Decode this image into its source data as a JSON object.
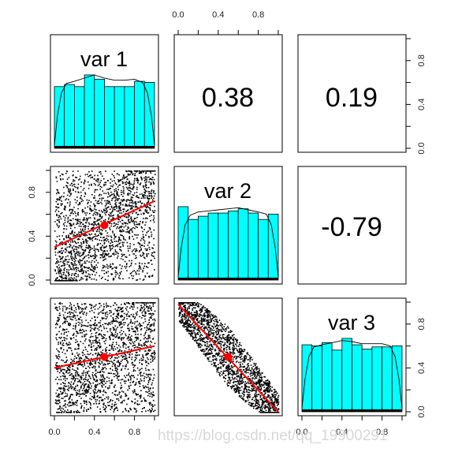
{
  "chart_data": {
    "type": "scatter",
    "title": "",
    "variables": [
      "var 1",
      "var 2",
      "var 3"
    ],
    "correlations": [
      {
        "row": 1,
        "col": 2,
        "pair": "var 1 / var 2",
        "value": 0.38,
        "label": "0.38"
      },
      {
        "row": 1,
        "col": 3,
        "pair": "var 1 / var 3",
        "value": 0.19,
        "label": "0.19"
      },
      {
        "row": 2,
        "col": 3,
        "pair": "var 2 / var 3",
        "value": -0.79,
        "label": "-0.79"
      }
    ],
    "axis_range": [
      0,
      1
    ],
    "axis_ticks": [
      0.0,
      0.4,
      0.8
    ],
    "axis_tick_labels": [
      "0.0",
      "0.4",
      "0.8"
    ],
    "histograms": [
      {
        "name": "var 1",
        "bins": [
          0,
          0.1,
          0.2,
          0.3,
          0.4,
          0.5,
          0.6,
          0.7,
          0.8,
          0.9,
          1.0
        ],
        "heights": [
          0.58,
          0.6,
          0.58,
          0.69,
          0.65,
          0.58,
          0.58,
          0.58,
          0.63,
          0.62
        ],
        "density_curve": [
          [
            0.0,
            0.03
          ],
          [
            0.03,
            0.3
          ],
          [
            0.07,
            0.52
          ],
          [
            0.12,
            0.61
          ],
          [
            0.2,
            0.63
          ],
          [
            0.3,
            0.66
          ],
          [
            0.4,
            0.69
          ],
          [
            0.5,
            0.66
          ],
          [
            0.6,
            0.64
          ],
          [
            0.7,
            0.64
          ],
          [
            0.8,
            0.65
          ],
          [
            0.88,
            0.62
          ],
          [
            0.93,
            0.52
          ],
          [
            0.97,
            0.3
          ],
          [
            1.0,
            0.03
          ]
        ]
      },
      {
        "name": "var 2",
        "bins": [
          0,
          0.1,
          0.2,
          0.3,
          0.4,
          0.5,
          0.6,
          0.7,
          0.8,
          0.9,
          1.0
        ],
        "heights": [
          0.69,
          0.57,
          0.6,
          0.63,
          0.63,
          0.65,
          0.67,
          0.63,
          0.57,
          0.62
        ],
        "density_curve": [
          [
            0.0,
            0.03
          ],
          [
            0.03,
            0.3
          ],
          [
            0.07,
            0.52
          ],
          [
            0.12,
            0.61
          ],
          [
            0.2,
            0.64
          ],
          [
            0.3,
            0.65
          ],
          [
            0.4,
            0.66
          ],
          [
            0.5,
            0.67
          ],
          [
            0.6,
            0.68
          ],
          [
            0.7,
            0.66
          ],
          [
            0.8,
            0.64
          ],
          [
            0.88,
            0.62
          ],
          [
            0.93,
            0.52
          ],
          [
            0.97,
            0.3
          ],
          [
            1.0,
            0.03
          ]
        ]
      },
      {
        "name": "var 3",
        "bins": [
          0,
          0.1,
          0.2,
          0.3,
          0.4,
          0.5,
          0.6,
          0.7,
          0.8,
          0.9,
          1.0
        ],
        "heights": [
          0.63,
          0.62,
          0.65,
          0.58,
          0.69,
          0.63,
          0.59,
          0.61,
          0.61,
          0.62
        ],
        "density_curve": [
          [
            0.0,
            0.03
          ],
          [
            0.03,
            0.3
          ],
          [
            0.07,
            0.52
          ],
          [
            0.12,
            0.61
          ],
          [
            0.2,
            0.63
          ],
          [
            0.3,
            0.65
          ],
          [
            0.4,
            0.67
          ],
          [
            0.5,
            0.66
          ],
          [
            0.6,
            0.64
          ],
          [
            0.7,
            0.64
          ],
          [
            0.8,
            0.64
          ],
          [
            0.88,
            0.62
          ],
          [
            0.93,
            0.52
          ],
          [
            0.97,
            0.3
          ],
          [
            1.0,
            0.03
          ]
        ]
      }
    ],
    "scatter_panels": [
      {
        "row": 2,
        "col": 1,
        "x": "var 1",
        "y": "var 2",
        "centroid": [
          0.5,
          0.5
        ],
        "fit_line": [
          [
            0.0,
            0.3
          ],
          [
            1.0,
            0.72
          ]
        ]
      },
      {
        "row": 3,
        "col": 1,
        "x": "var 1",
        "y": "var 3",
        "centroid": [
          0.5,
          0.5
        ],
        "fit_line": [
          [
            0.0,
            0.4
          ],
          [
            1.0,
            0.6
          ]
        ]
      },
      {
        "row": 3,
        "col": 2,
        "x": "var 2",
        "y": "var 3",
        "centroid": [
          0.5,
          0.5
        ],
        "fit_line": [
          [
            0.0,
            0.98
          ],
          [
            1.0,
            0.0
          ]
        ]
      }
    ],
    "points_per_panel": 2000,
    "colors": {
      "histogram_fill": "#00ffff",
      "fit_line": "#ff0000",
      "centroid": "#ff0000",
      "points": "#000000"
    }
  },
  "watermark": "https://blog.csdn.net/qq_19900291"
}
